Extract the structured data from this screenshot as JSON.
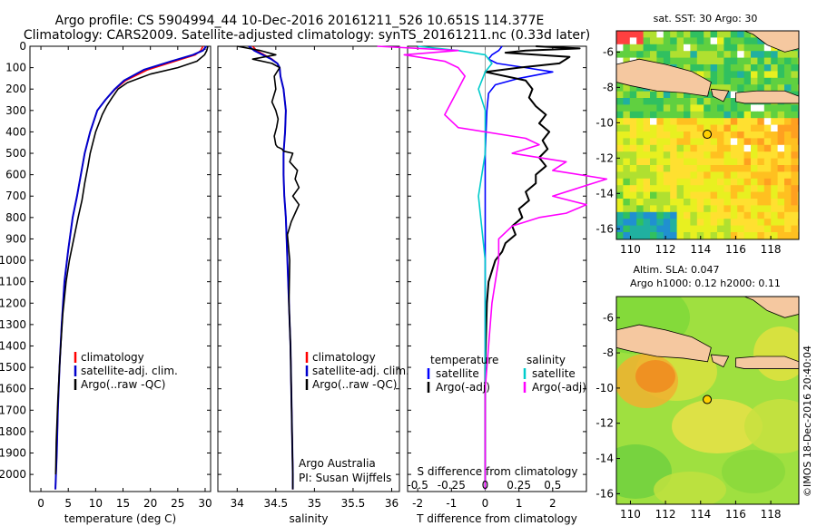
{
  "header": {
    "line1": "Argo profile: CS 5904994_44 10-Dec-2016 20161211_526 10.651S 114.377E",
    "line2": "Climatology: CARS2009. Satellite-adjusted climatology: synTS_20161211.nc (0.33d later)"
  },
  "credit": "©IMOS 18-Dec-2016 20:40:04",
  "chart_data": [
    {
      "id": "temperature",
      "type": "line",
      "xlabel": "temperature (deg C)",
      "ylabel": "",
      "xlim": [
        -2,
        31
      ],
      "ylim": [
        2080,
        0
      ],
      "xticks": [
        0,
        5,
        10,
        15,
        20,
        25,
        30
      ],
      "yticks": [
        0,
        100,
        200,
        300,
        400,
        500,
        600,
        700,
        800,
        900,
        1000,
        1100,
        1200,
        1300,
        1400,
        1500,
        1600,
        1700,
        1800,
        1900,
        2000
      ],
      "legend": [
        "climatology",
        "satellite-adj. clim.",
        "Argo(..raw -QC)"
      ],
      "series": [
        {
          "name": "climatology",
          "color": "#ff0000",
          "x": [
            29.6,
            29.2,
            28.2,
            24.5,
            19.5,
            15.5,
            13.6,
            11.8,
            10.3,
            9.0,
            8.0,
            7.3,
            6.6,
            5.8,
            5.0,
            4.3,
            3.8,
            3.4,
            3.1,
            2.9,
            2.75,
            2.65
          ],
          "y": [
            0,
            20,
            40,
            70,
            110,
            160,
            200,
            250,
            300,
            400,
            500,
            600,
            700,
            800,
            950,
            1100,
            1300,
            1500,
            1700,
            1900,
            2000,
            2070
          ]
        },
        {
          "name": "satellite-adj. clim.",
          "color": "#0000cc",
          "x": [
            30.2,
            29.6,
            27.8,
            23.8,
            18.8,
            15.2,
            13.5,
            11.8,
            10.3,
            9.0,
            8.0,
            7.3,
            6.6,
            5.8,
            5.0,
            4.3,
            3.8,
            3.4,
            3.1,
            2.9,
            2.75,
            2.65
          ],
          "y": [
            0,
            20,
            40,
            70,
            110,
            160,
            200,
            250,
            300,
            400,
            500,
            600,
            700,
            800,
            950,
            1100,
            1300,
            1500,
            1700,
            1900,
            2000,
            2070
          ]
        },
        {
          "name": "Argo(..raw -QC)",
          "color": "#000000",
          "x": [
            30.5,
            30.3,
            29.9,
            28.5,
            25.0,
            20.0,
            15.8,
            14.1,
            13.0,
            12.0,
            11.2,
            10.6,
            10.0,
            9.5,
            9.0,
            8.6,
            8.0,
            7.5,
            6.8,
            6.0,
            5.2,
            4.6,
            4.0,
            3.5,
            3.1,
            2.8,
            2.7
          ],
          "y": [
            0,
            20,
            40,
            70,
            100,
            130,
            170,
            200,
            240,
            280,
            320,
            360,
            400,
            450,
            500,
            560,
            640,
            720,
            800,
            900,
            1000,
            1100,
            1250,
            1450,
            1650,
            1850,
            2000
          ]
        }
      ]
    },
    {
      "id": "salinity",
      "type": "line",
      "xlabel": "salinity",
      "ylabel": "",
      "xlim": [
        33.75,
        36.1
      ],
      "ylim": [
        2080,
        0
      ],
      "xticks": [
        34,
        34.5,
        35,
        35.5,
        36
      ],
      "legend": [
        "climatology",
        "satellite-adj. clim.",
        "Argo(..raw -QC)"
      ],
      "annotations": [
        "Argo Australia",
        "PI: Susan Wijffels"
      ],
      "series": [
        {
          "name": "climatology",
          "color": "#ff0000",
          "x": [
            34.2,
            34.25,
            34.35,
            34.45,
            34.52,
            34.55,
            34.56,
            34.6,
            34.63,
            34.62,
            34.6,
            34.6,
            34.61,
            34.63,
            34.65,
            34.67,
            34.69,
            34.7,
            34.71,
            34.72,
            34.72
          ],
          "y": [
            0,
            20,
            40,
            60,
            80,
            100,
            140,
            200,
            300,
            400,
            500,
            600,
            700,
            800,
            1000,
            1200,
            1400,
            1600,
            1800,
            2000,
            2070
          ]
        },
        {
          "name": "satellite-adj. clim.",
          "color": "#0000cc",
          "x": [
            34.15,
            34.22,
            34.33,
            34.44,
            34.52,
            34.55,
            34.56,
            34.6,
            34.63,
            34.62,
            34.6,
            34.6,
            34.61,
            34.63,
            34.65,
            34.67,
            34.69,
            34.7,
            34.71,
            34.72,
            34.72
          ],
          "y": [
            0,
            20,
            40,
            60,
            80,
            100,
            140,
            200,
            300,
            400,
            500,
            600,
            700,
            800,
            1000,
            1200,
            1400,
            1600,
            1800,
            2000,
            2070
          ]
        },
        {
          "name": "Argo(..raw -QC)",
          "color": "#000000",
          "x": [
            34.0,
            34.3,
            34.5,
            34.2,
            34.45,
            34.55,
            34.48,
            34.5,
            34.45,
            34.5,
            34.53,
            34.51,
            34.48,
            34.49,
            34.5,
            34.52,
            34.58,
            34.6,
            34.72,
            34.68,
            34.78,
            34.75,
            34.8,
            34.72,
            34.8,
            34.75,
            34.7,
            34.65,
            34.68,
            34.67,
            34.69,
            34.7,
            34.71,
            34.72,
            34.72
          ],
          "y": [
            0,
            20,
            40,
            60,
            80,
            100,
            140,
            200,
            260,
            300,
            340,
            380,
            420,
            440,
            460,
            470,
            480,
            490,
            500,
            540,
            580,
            620,
            660,
            700,
            740,
            780,
            820,
            880,
            1000,
            1200,
            1400,
            1600,
            1800,
            2000,
            2070
          ]
        }
      ]
    },
    {
      "id": "differences",
      "type": "line",
      "xlabel": "T difference from climatology",
      "ylabel": "",
      "xlim": [
        -2.3,
        3.0
      ],
      "ylim": [
        2080,
        0
      ],
      "xticks": [
        -2,
        -1,
        0,
        1,
        2
      ],
      "secondary_xlabel": "S difference from climatology",
      "secondary_xticks": [
        "-0.5",
        "-0.25",
        "0",
        "0.25",
        "0.5"
      ],
      "legend_groups": [
        {
          "title": "temperature",
          "entries": [
            "satellite",
            "Argo(-adj)"
          ]
        },
        {
          "title": "salinity",
          "entries": [
            "satellite",
            "Argo(-adj)"
          ]
        }
      ],
      "series": [
        {
          "name": "temperature satellite",
          "color": "#0000ff",
          "x": [
            0.5,
            0.4,
            0.2,
            0.1,
            0.35,
            1.2,
            2.0,
            1.0,
            0.3,
            0.1,
            0.05,
            0.0,
            0.0,
            0.0,
            0.0,
            0.0
          ],
          "y": [
            0,
            20,
            40,
            60,
            80,
            100,
            120,
            150,
            180,
            220,
            300,
            500,
            800,
            1200,
            1600,
            2070
          ]
        },
        {
          "name": "temperature Argo(-adj)",
          "color": "#000000",
          "x": [
            1.5,
            2.8,
            1.2,
            0.6,
            2.5,
            2.2,
            1.0,
            0.0,
            1.2,
            1.4,
            1.3,
            1.5,
            1.8,
            1.6,
            1.9,
            1.7,
            1.85,
            1.6,
            1.8,
            1.5,
            1.5,
            1.2,
            1.3,
            1.0,
            1.1,
            0.8,
            0.9,
            0.6,
            0.5,
            0.3,
            0.2,
            0.1,
            0.05,
            0.0,
            0.0,
            0.0
          ],
          "y": [
            0,
            10,
            20,
            30,
            50,
            80,
            100,
            120,
            160,
            200,
            240,
            280,
            320,
            360,
            400,
            440,
            480,
            520,
            560,
            600,
            640,
            680,
            720,
            760,
            800,
            840,
            880,
            920,
            960,
            1000,
            1050,
            1100,
            1200,
            1500,
            1800,
            2070
          ]
        },
        {
          "name": "salinity satellite",
          "color": "#00cccc",
          "x": [
            -0.5,
            -0.2,
            0.0,
            0.05,
            0.0,
            -0.05,
            0.0,
            0.0,
            -0.05,
            0.0,
            0.0,
            0.0
          ],
          "y": [
            0,
            20,
            40,
            80,
            120,
            200,
            300,
            500,
            700,
            1000,
            1500,
            2070
          ]
        },
        {
          "name": "salinity Argo(-adj)",
          "color": "#ff00ff",
          "x": [
            -0.8,
            -0.2,
            -0.6,
            -0.3,
            -0.2,
            -0.15,
            -0.2,
            -0.25,
            -0.3,
            -0.2,
            0.3,
            0.4,
            0.2,
            0.6,
            0.5,
            0.9,
            0.7,
            0.5,
            0.75,
            0.6,
            0.4,
            0.2,
            0.1,
            0.1,
            0.05,
            0.0,
            0.0
          ],
          "y": [
            0,
            20,
            40,
            70,
            100,
            140,
            200,
            260,
            320,
            380,
            430,
            460,
            500,
            540,
            580,
            620,
            660,
            700,
            740,
            780,
            800,
            840,
            900,
            1000,
            1200,
            1600,
            2070
          ]
        }
      ]
    },
    {
      "id": "map_sst",
      "type": "heatmap",
      "title": "sat. SST: 30  Argo: 30",
      "xticks": [
        110,
        112,
        114,
        116,
        118
      ],
      "yticks": [
        -6,
        -8,
        -10,
        -12,
        -14,
        -16
      ],
      "xlim": [
        109.2,
        119.6
      ],
      "ylim": [
        -16.6,
        -4.8
      ],
      "marker": {
        "lon": 114.377,
        "lat": -10.651
      }
    },
    {
      "id": "map_sla",
      "type": "heatmap",
      "title": "Altim. SLA: 0.047",
      "subtitle": "Argo h1000: 0.12 h2000: 0.11",
      "xticks": [
        110,
        112,
        114,
        116,
        118
      ],
      "yticks": [
        -6,
        -8,
        -10,
        -12,
        -14,
        -16
      ],
      "xlim": [
        109.2,
        119.6
      ],
      "ylim": [
        -16.6,
        -4.8
      ],
      "marker": {
        "lon": 114.377,
        "lat": -10.651
      }
    }
  ]
}
